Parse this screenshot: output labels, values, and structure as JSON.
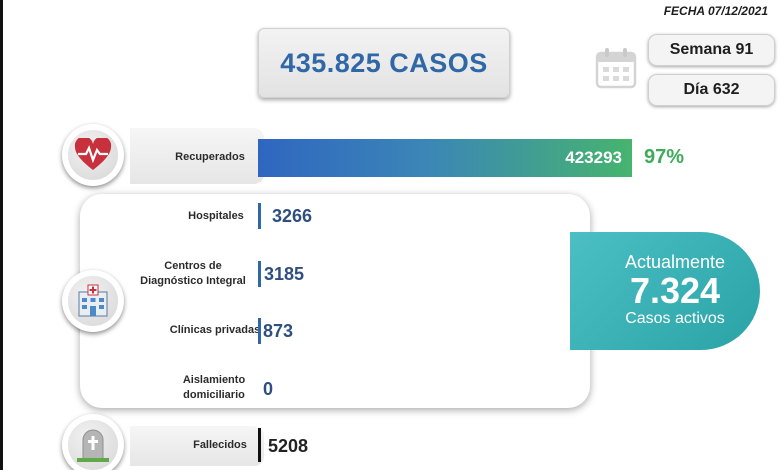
{
  "fecha": "FECHA 07/12/2021",
  "total": "435.825 CASOS",
  "semana": "Semana 91",
  "dia": "Día 632",
  "recuperados": {
    "label": "Recuperados",
    "value": "423293",
    "pct": "97%",
    "fraction": 0.97
  },
  "breakdown": [
    {
      "label": "Hospitales",
      "value": "3266"
    },
    {
      "label": "Centros de Diagnóstico Integral",
      "value": "3185"
    },
    {
      "label": "Clínicas privadas",
      "value": "873"
    },
    {
      "label": "Aislamiento domiciliario",
      "value": "0"
    }
  ],
  "activos": {
    "line1": "Actualmente",
    "value": "7.324",
    "line2": "Casos activos"
  },
  "fallecidos": {
    "label": "Fallecidos",
    "value": "5208"
  },
  "colors": {
    "accent_blue": "#3067a6",
    "green": "#3dab5a",
    "teal": "#2aa3a6"
  },
  "icons": [
    "calendar-icon",
    "heart-pulse-icon",
    "hospital-icon",
    "gravestone-icon"
  ]
}
